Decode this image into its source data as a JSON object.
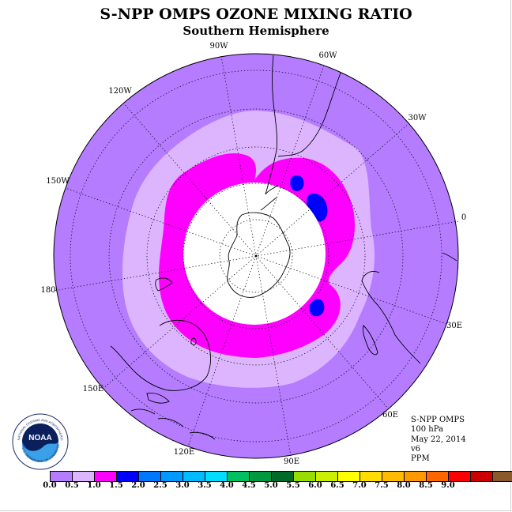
{
  "header": {
    "title": "S-NPP OMPS OZONE MIXING RATIO",
    "subtitle": "Southern Hemisphere"
  },
  "map": {
    "projection": "south-polar-stereographic",
    "longitude_labels": [
      "90W",
      "60W",
      "30W",
      "0",
      "30E",
      "60E",
      "90E",
      "120E",
      "150E",
      "180",
      "150W",
      "120W"
    ],
    "gridlines": "dotted",
    "colors": {
      "band_0_0_0_5": "#b57cff",
      "band_0_5_1_0": "#ddb5ff",
      "band_1_0_1_5": "#ff00ff",
      "band_1_5_2_0": "#0000ff",
      "no_data": "#ffffff"
    }
  },
  "info": {
    "instrument": "S-NPP OMPS",
    "level": "100 hPa",
    "date": "May 22, 2014",
    "version": "v6",
    "units": "PPM"
  },
  "logo": {
    "text": "NOAA",
    "ring_text": "NATIONAL OCEANIC AND ATMOSPHERIC ADMINISTRATION",
    "ring_text_bottom": "U.S. DEPARTMENT OF COMMERCE"
  },
  "colorbar": {
    "colors": [
      "#b57cff",
      "#ddb5ff",
      "#ff00ff",
      "#0000ff",
      "#0077ff",
      "#0099ff",
      "#00bbff",
      "#00ddff",
      "#00c060",
      "#009940",
      "#006a28",
      "#99dd00",
      "#ccee00",
      "#ffff00",
      "#ffdd00",
      "#ffbb00",
      "#ff9900",
      "#ff6600",
      "#ff0000",
      "#cc0000",
      "#8b5a2b"
    ],
    "tick_labels": [
      "0.0",
      "0.5",
      "1.0",
      "1.5",
      "2.0",
      "2.5",
      "3.0",
      "3.5",
      "4.0",
      "4.5",
      "5.0",
      "5.5",
      "6.0",
      "6.5",
      "7.0",
      "7.5",
      "8.0",
      "8.5",
      "9.0"
    ]
  }
}
